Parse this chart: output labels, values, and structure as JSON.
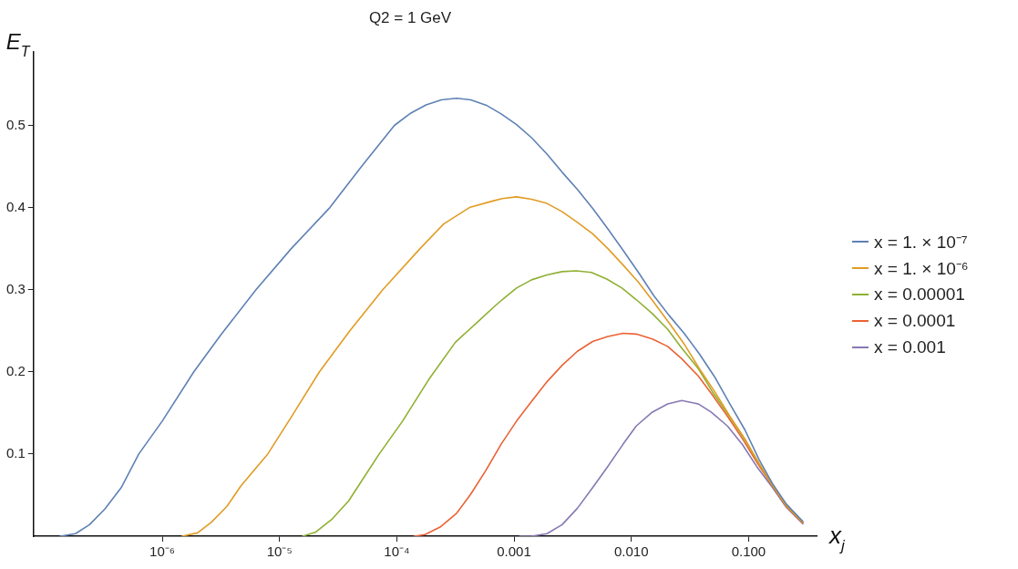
{
  "chart_data": {
    "type": "line",
    "title": "Q2 = 1 GeV",
    "xlabel": "x$_{j}$",
    "ylabel": "E$_{T}$",
    "log": "x",
    "grid": false,
    "legend": "right",
    "marker": "none",
    "xlim": [
      8e-08,
      0.38
    ],
    "ylim": [
      0,
      0.59
    ],
    "xticks": [
      {
        "value": 1e-06,
        "label": "10⁻⁶"
      },
      {
        "value": 1e-05,
        "label": "10⁻⁵"
      },
      {
        "value": 0.0001,
        "label": "10⁻⁴"
      },
      {
        "value": 0.001,
        "label": "0.001"
      },
      {
        "value": 0.01,
        "label": "0.010"
      },
      {
        "value": 0.1,
        "label": "0.100"
      }
    ],
    "yticks": [
      0.1,
      0.2,
      0.3,
      0.4,
      0.5
    ],
    "series": [
      {
        "name": "x = 1. × 10⁻⁷",
        "color": "#5e81b5",
        "x": [
          1.35e-07,
          1.82e-07,
          2.4e-07,
          3.24e-07,
          4.47e-07,
          6.31e-07,
          1e-06,
          1.86e-06,
          3.16e-06,
          6.3e-06,
          1.26e-05,
          2.69e-05,
          5.01e-05,
          9.55e-05,
          0.000132,
          0.000178,
          0.00024,
          0.000324,
          0.000427,
          0.000589,
          0.000776,
          0.00105,
          0.00141,
          0.00191,
          0.00257,
          0.00347,
          0.00468,
          0.00631,
          0.00851,
          0.0115,
          0.0155,
          0.0209,
          0.0282,
          0.038,
          0.0513,
          0.0692,
          0.0933,
          0.123,
          0.16,
          0.21,
          0.29
        ],
        "values": [
          0,
          0.003,
          0.014,
          0.033,
          0.059,
          0.1,
          0.14,
          0.2,
          0.245,
          0.3,
          0.35,
          0.4,
          0.45,
          0.5,
          0.515,
          0.525,
          0.531,
          0.533,
          0.531,
          0.524,
          0.514,
          0.501,
          0.485,
          0.465,
          0.443,
          0.422,
          0.399,
          0.374,
          0.348,
          0.321,
          0.293,
          0.269,
          0.247,
          0.222,
          0.194,
          0.161,
          0.129,
          0.093,
          0.064,
          0.039,
          0.018
        ]
      },
      {
        "name": "x = 1. × 10⁻⁶",
        "color": "#e19c24",
        "x": [
          1.48e-06,
          2e-06,
          2.63e-06,
          3.55e-06,
          4.68e-06,
          7.94e-06,
          1.26e-05,
          2.19e-05,
          3.98e-05,
          7.59e-05,
          0.000158,
          0.000251,
          0.000417,
          0.000661,
          0.000794,
          0.00105,
          0.00141,
          0.00191,
          0.00257,
          0.00347,
          0.00468,
          0.00631,
          0.00851,
          0.0115,
          0.0155,
          0.0209,
          0.0282,
          0.038,
          0.0513,
          0.0692,
          0.0933,
          0.123,
          0.16,
          0.21,
          0.29
        ],
        "values": [
          0,
          0.004,
          0.017,
          0.036,
          0.061,
          0.1,
          0.145,
          0.2,
          0.25,
          0.3,
          0.35,
          0.38,
          0.4,
          0.408,
          0.411,
          0.413,
          0.41,
          0.405,
          0.395,
          0.382,
          0.368,
          0.35,
          0.33,
          0.309,
          0.285,
          0.26,
          0.234,
          0.204,
          0.176,
          0.146,
          0.118,
          0.088,
          0.062,
          0.037,
          0.017
        ]
      },
      {
        "name": "x = 0.00001",
        "color": "#8fb032",
        "x": [
          1.58e-05,
          2.04e-05,
          2.82e-05,
          3.89e-05,
          7.08e-05,
          0.000112,
          0.000186,
          0.000316,
          0.000501,
          0.000661,
          0.000794,
          0.00105,
          0.00141,
          0.00191,
          0.00257,
          0.00339,
          0.00457,
          0.00617,
          0.00832,
          0.011,
          0.0151,
          0.0204,
          0.0269,
          0.0372,
          0.049,
          0.0692,
          0.0933,
          0.123,
          0.16,
          0.21,
          0.29
        ],
        "values": [
          0,
          0.005,
          0.021,
          0.043,
          0.1,
          0.14,
          0.19,
          0.236,
          0.262,
          0.278,
          0.288,
          0.302,
          0.312,
          0.318,
          0.322,
          0.323,
          0.321,
          0.313,
          0.302,
          0.288,
          0.271,
          0.252,
          0.229,
          0.204,
          0.176,
          0.145,
          0.117,
          0.088,
          0.062,
          0.037,
          0.017
        ]
      },
      {
        "name": "x = 0.0001",
        "color": "#eb6235",
        "x": [
          0.000141,
          0.000174,
          0.000234,
          0.000324,
          0.000427,
          0.000575,
          0.000776,
          0.00105,
          0.00141,
          0.00191,
          0.00257,
          0.00347,
          0.00468,
          0.00631,
          0.00851,
          0.011,
          0.0151,
          0.0204,
          0.0269,
          0.0372,
          0.049,
          0.0661,
          0.0891,
          0.12,
          0.16,
          0.21,
          0.29
        ],
        "values": [
          0,
          0.002,
          0.011,
          0.028,
          0.051,
          0.08,
          0.112,
          0.14,
          0.164,
          0.188,
          0.208,
          0.225,
          0.237,
          0.243,
          0.247,
          0.246,
          0.24,
          0.231,
          0.216,
          0.195,
          0.172,
          0.146,
          0.118,
          0.088,
          0.061,
          0.036,
          0.016
        ]
      },
      {
        "name": "x = 0.001",
        "color": "#8778b3",
        "x": [
          0.00112,
          0.00141,
          0.00191,
          0.00257,
          0.00347,
          0.00468,
          0.00631,
          0.00851,
          0.011,
          0.0151,
          0.0204,
          0.0269,
          0.0372,
          0.0479,
          0.0661,
          0.0891,
          0.117,
          0.16,
          0.21,
          0.29
        ],
        "values": [
          0,
          0,
          0.003,
          0.014,
          0.034,
          0.059,
          0.085,
          0.112,
          0.134,
          0.151,
          0.161,
          0.165,
          0.161,
          0.151,
          0.134,
          0.111,
          0.085,
          0.059,
          0.035,
          0.015
        ]
      }
    ]
  }
}
